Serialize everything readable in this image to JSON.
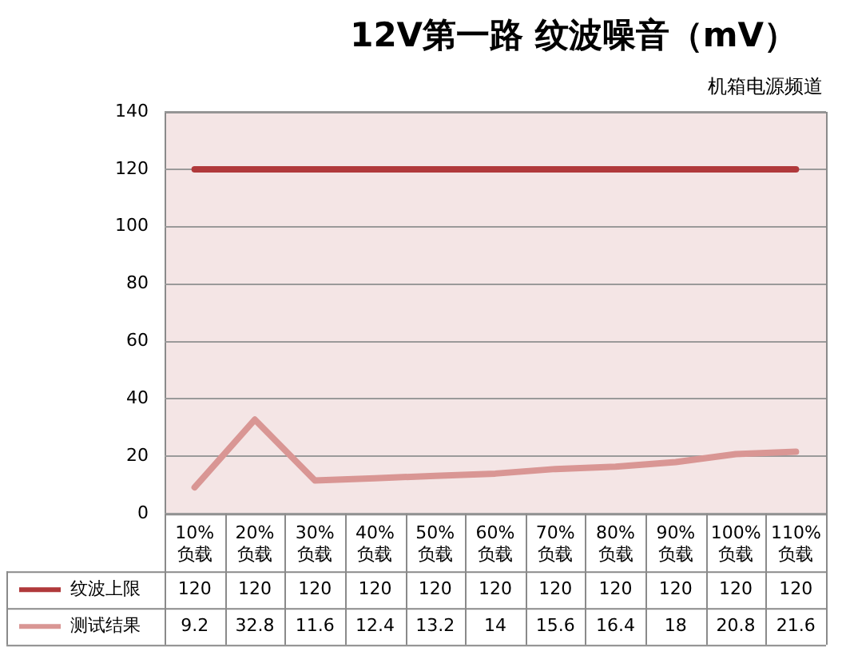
{
  "chart_data": {
    "type": "line",
    "title": "12V第一路 纹波噪音（mV）",
    "subtitle": "机箱电源频道",
    "categories": [
      "10%\n负载",
      "20%\n负载",
      "30%\n负载",
      "40%\n负载",
      "50%\n负载",
      "60%\n负载",
      "70%\n负载",
      "80%\n负载",
      "90%\n负载",
      "100%\n负载",
      "110%\n负载"
    ],
    "series": [
      {
        "name": "纹波上限",
        "color": "#b0393b",
        "values": [
          120,
          120,
          120,
          120,
          120,
          120,
          120,
          120,
          120,
          120,
          120
        ]
      },
      {
        "name": "测试结果",
        "color": "#d99694",
        "values": [
          9.2,
          32.8,
          11.6,
          12.4,
          13.2,
          14,
          15.6,
          16.4,
          18,
          20.8,
          21.6
        ]
      }
    ],
    "ylim": [
      0,
      140
    ],
    "yticks": [
      0,
      20,
      40,
      60,
      80,
      100,
      120,
      140
    ],
    "grid": "y",
    "legend": "bottom",
    "data_labels": true,
    "marker": "none",
    "line_style": "solid"
  }
}
